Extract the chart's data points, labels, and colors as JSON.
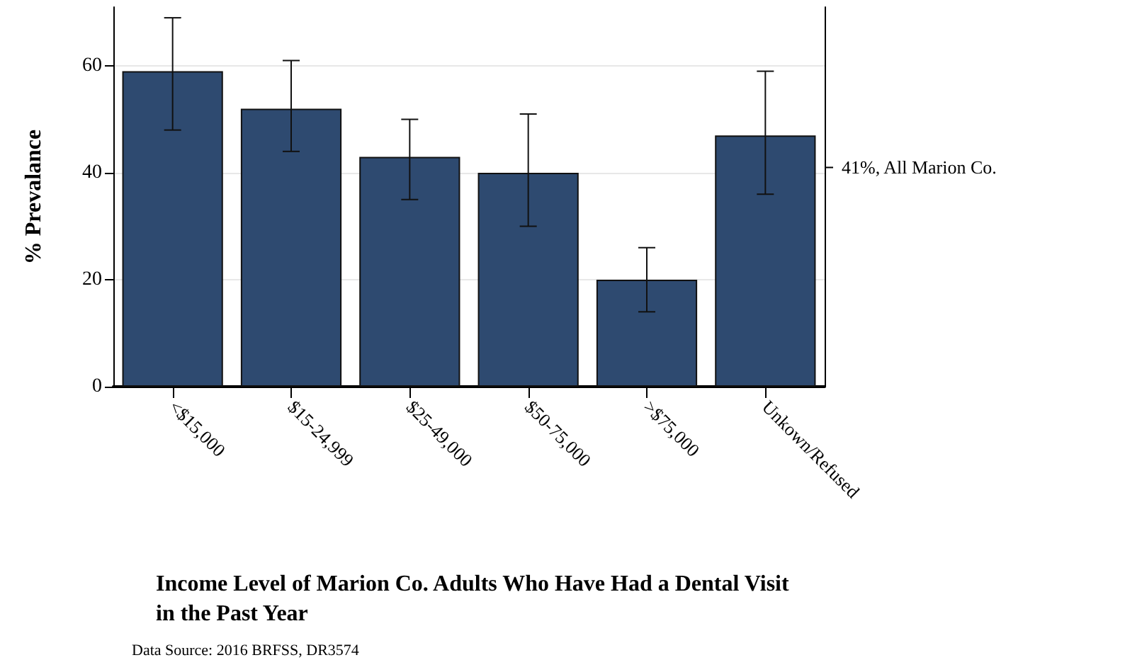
{
  "chart_data": {
    "type": "bar",
    "title": "Income Level of Marion Co. Adults Who Have Had a Dental Visit in the Past Year",
    "ylabel": "% Prevalance",
    "annotations": [
      "Data Source: 2016 BRFSS, DR3574"
    ],
    "categories": [
      "<$15,000",
      "$15-24,999",
      "$25-49,000",
      "$50-75,000",
      ">$75,000",
      "Unkown/Refused"
    ],
    "values": [
      59,
      52,
      43,
      40,
      20,
      47
    ],
    "errors": [
      [
        48,
        69
      ],
      [
        44,
        61
      ],
      [
        35,
        50
      ],
      [
        30,
        51
      ],
      [
        14,
        26
      ],
      [
        36,
        59
      ]
    ],
    "color": "#2e4a70",
    "ylim": [
      0,
      71
    ],
    "yticks": [
      0,
      20,
      40,
      60
    ],
    "grid": "y",
    "ref_lines": [
      {
        "axis": "y",
        "value": 41,
        "label": "41%, All Marion Co."
      }
    ]
  }
}
